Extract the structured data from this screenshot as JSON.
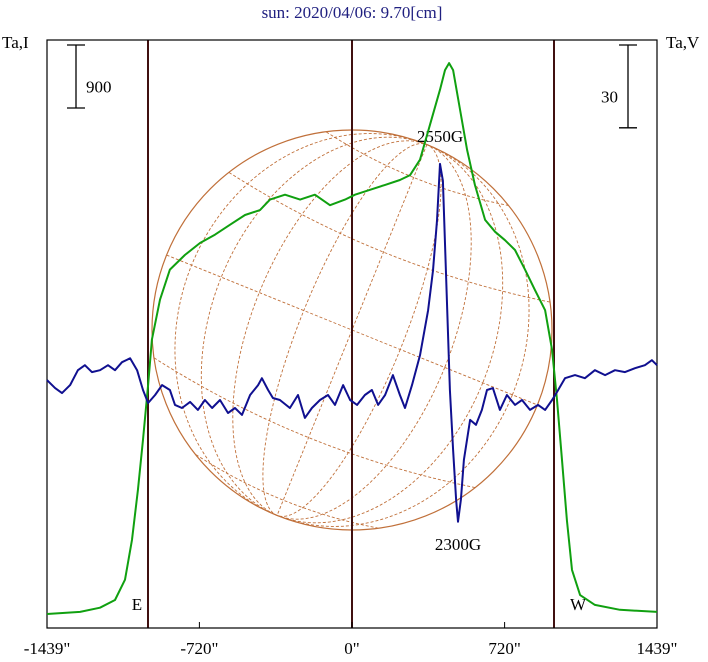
{
  "chart_data": {
    "type": "line",
    "title": "sun: 2020/04/06: 9.70[cm]",
    "y_label": "Ta,I",
    "y2_label": "Ta,V",
    "xlim": [
      -1439,
      1439
    ],
    "xticks": [
      {
        "value": -1439,
        "label": "-1439\""
      },
      {
        "value": -720,
        "label": "-720\""
      },
      {
        "value": 0,
        "label": "0\""
      },
      {
        "value": 720,
        "label": "720\""
      },
      {
        "value": 1439,
        "label": "1439\""
      }
    ],
    "ylim": [
      0,
      8400
    ],
    "y2lim": [
      -88,
      125
    ],
    "scale_bars": [
      {
        "axis": "y",
        "value": 900
      },
      {
        "axis": "y2",
        "value": 30
      }
    ],
    "annotations": [
      "2550G",
      "2300G",
      "E",
      "W"
    ],
    "series": [
      {
        "name": "Ta,I",
        "color": "#10a010",
        "x": [
          -1439,
          -1283,
          -1189,
          -1118,
          -1071,
          -1038,
          -1010,
          -986,
          -962,
          -944,
          -906,
          -859,
          -788,
          -717,
          -646,
          -576,
          -505,
          -434,
          -387,
          -316,
          -245,
          -175,
          -104,
          -33,
          14,
          85,
          156,
          226,
          274,
          321,
          368,
          415,
          439,
          458,
          477,
          510,
          543,
          580,
          628,
          675,
          722,
          769,
          816,
          863,
          911,
          944,
          967,
          991,
          1014,
          1038,
          1076,
          1146,
          1264,
          1439
        ],
        "values": [
          200,
          230,
          290,
          400,
          690,
          1260,
          1970,
          2690,
          3470,
          4120,
          4690,
          5120,
          5330,
          5500,
          5620,
          5760,
          5900,
          5970,
          6120,
          6190,
          6120,
          6190,
          6040,
          6120,
          6190,
          6260,
          6330,
          6400,
          6470,
          6690,
          7190,
          7690,
          7970,
          8070,
          7970,
          7400,
          6830,
          6330,
          5830,
          5660,
          5540,
          5400,
          5120,
          4830,
          4540,
          3970,
          3260,
          2400,
          1540,
          830,
          470,
          330,
          260,
          230
        ]
      },
      {
        "name": "Ta,V",
        "color": "#101090",
        "axis": "y2",
        "x": [
          -1439,
          -1401,
          -1368,
          -1330,
          -1293,
          -1260,
          -1227,
          -1189,
          -1151,
          -1118,
          -1085,
          -1047,
          -1014,
          -986,
          -962,
          -929,
          -896,
          -859,
          -835,
          -802,
          -764,
          -727,
          -694,
          -660,
          -623,
          -585,
          -552,
          -519,
          -481,
          -443,
          -425,
          -396,
          -373,
          -340,
          -293,
          -255,
          -222,
          -189,
          -151,
          -113,
          -80,
          -42,
          -9,
          24,
          61,
          94,
          123,
          156,
          193,
          226,
          250,
          283,
          321,
          359,
          382,
          401,
          415,
          429,
          443,
          462,
          477,
          491,
          500,
          514,
          528,
          557,
          585,
          613,
          637,
          665,
          698,
          731,
          769,
          802,
          840,
          878,
          911,
          944,
          967,
          1005,
          1052,
          1099,
          1146,
          1194,
          1241,
          1288,
          1335,
          1382,
          1415,
          1439
        ],
        "values": [
          1.8,
          -1.1,
          -2.9,
          0,
          5.4,
          7.2,
          4.7,
          5.4,
          7.2,
          5.4,
          8.3,
          9.7,
          5.4,
          -1.8,
          -6.5,
          -3.6,
          0,
          -1.8,
          -7.2,
          -8.3,
          -6.1,
          -9.0,
          -5.4,
          -8.3,
          -5.4,
          -10.1,
          -8.3,
          -10.8,
          -3.6,
          0,
          2.5,
          -1.8,
          -4.7,
          -5.4,
          -8.3,
          -3.6,
          -11.9,
          -8.3,
          -5.4,
          -3.6,
          -7.2,
          0,
          -5.4,
          -7.2,
          -3.6,
          -1.8,
          -7.2,
          -3.6,
          3.6,
          -3.6,
          -8.3,
          0,
          10.8,
          27.1,
          41.5,
          59.6,
          80.1,
          74.0,
          41.5,
          -1.8,
          -23.5,
          -41.5,
          -49.5,
          -41.5,
          -27.1,
          -12.6,
          -14.4,
          -9.0,
          -1.8,
          -1.1,
          -9.0,
          -3.6,
          -7.2,
          -5.4,
          -9.0,
          -7.2,
          -9.0,
          -5.4,
          -2.5,
          2.5,
          3.6,
          2.5,
          5.4,
          3.6,
          5.4,
          4.7,
          6.1,
          7.2,
          9.0,
          7.2
        ]
      }
    ]
  }
}
